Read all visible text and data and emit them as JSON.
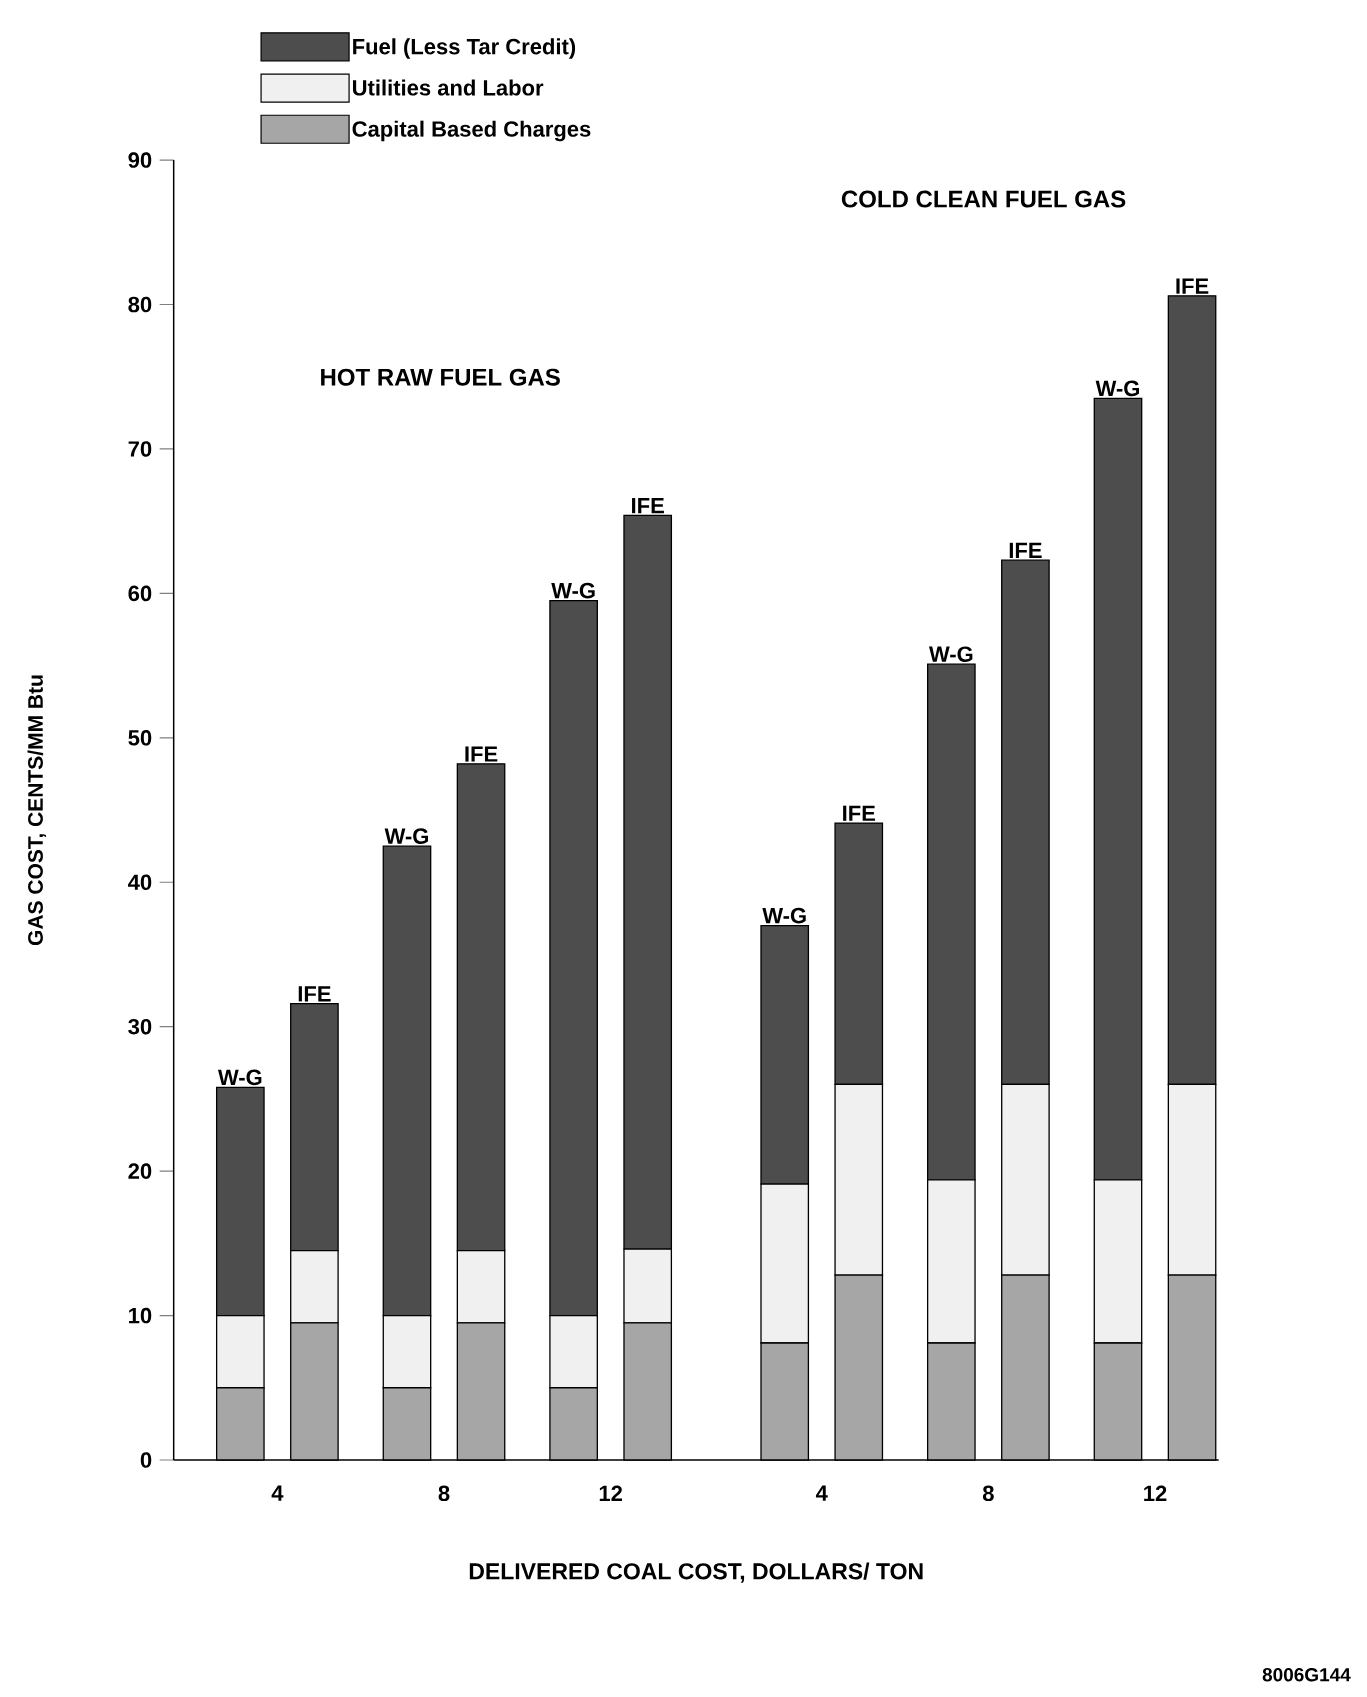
{
  "chart_data": {
    "type": "bar",
    "stacked": true,
    "xlabel": "DELIVERED COAL COST, DOLLARS/ TON",
    "ylabel": "GAS COST, CENTS/MM Btu",
    "categories": [
      null,
      null,
      null,
      null,
      null,
      null,
      null,
      null,
      null,
      null,
      null,
      null
    ],
    "series": [
      {
        "name": "Capital Based Charges",
        "color": "#a6a6a6",
        "values": [
          5,
          9.5,
          5,
          9.5,
          5,
          9.5,
          8.1,
          12.8,
          8.1,
          12.8,
          8.1,
          12.8
        ]
      },
      {
        "name": "Utilities and Labor",
        "color": "#f0f0f0",
        "values": [
          5,
          5,
          5,
          5,
          5,
          5.1,
          11,
          13.2,
          11.3,
          13.2,
          11.3,
          13.2
        ]
      },
      {
        "name": "Fuel (Less Tar Credit)",
        "color": "#4d4d4d",
        "values": [
          15.8,
          17.1,
          32.5,
          33.7,
          49.5,
          50.8,
          17.9,
          18.1,
          35.7,
          36.3,
          54.1,
          54.6
        ],
        "value_labels": [
          "W-G",
          "IFE",
          "W-G",
          "IFE",
          "W-G",
          "IFE",
          "W-G",
          "IFE",
          "W-G",
          "IFE",
          "W-G",
          "IFE"
        ]
      }
    ],
    "ylim": [
      0,
      90
    ],
    "yticks": [
      0,
      10,
      20,
      30,
      40,
      50,
      60,
      70,
      80,
      90
    ],
    "legend": "top left",
    "annotations": [
      "HOT RAW FUEL GAS",
      "COLD CLEAN FUEL GAS",
      "4",
      "8",
      "12",
      "4",
      "8",
      "12",
      "8006G144"
    ]
  }
}
